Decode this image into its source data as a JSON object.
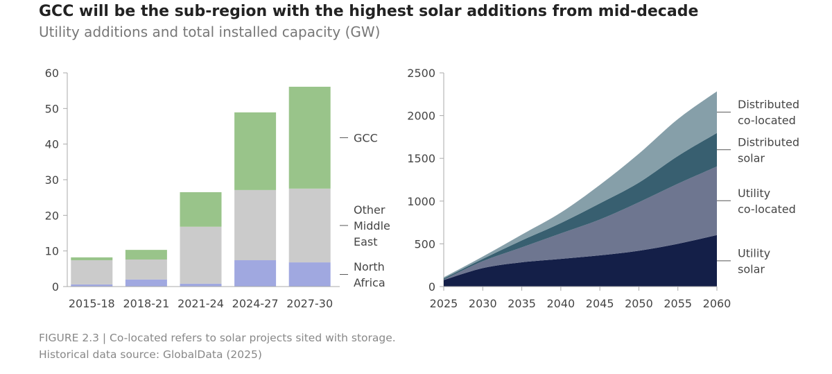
{
  "title": "GCC will be the sub-region with the highest solar additions from mid-decade",
  "subtitle": "Utility additions and total installed capacity (GW)",
  "footer": [
    "FIGURE 2.3 | Co-located refers to solar projects sited with storage.",
    "Historical data source: GlobalData (2025)"
  ],
  "chart_data": [
    {
      "type": "bar",
      "stacked": true,
      "categories": [
        "2015-18",
        "2018-21",
        "2021-24",
        "2024-27",
        "2027-30"
      ],
      "ylim": [
        0,
        60
      ],
      "yticks": [
        0,
        10,
        20,
        30,
        40,
        50,
        60
      ],
      "series": [
        {
          "name": "North Africa",
          "label_lines": [
            "North",
            "Africa"
          ],
          "color": "#a0a8e0",
          "values": [
            0.6,
            2.0,
            0.8,
            7.4,
            6.8
          ]
        },
        {
          "name": "Other Middle East",
          "label_lines": [
            "Other",
            "Middle",
            "East"
          ],
          "color": "#cbcbcb",
          "values": [
            6.8,
            5.6,
            16.0,
            19.7,
            20.7
          ]
        },
        {
          "name": "GCC",
          "label_lines": [
            "GCC"
          ],
          "color": "#99c48a",
          "values": [
            0.8,
            2.7,
            9.7,
            21.8,
            28.6
          ]
        }
      ]
    },
    {
      "type": "area",
      "stacked": true,
      "x": [
        2025,
        2030,
        2035,
        2040,
        2045,
        2050,
        2055,
        2060
      ],
      "xticks": [
        2025,
        2030,
        2035,
        2040,
        2045,
        2050,
        2055,
        2060
      ],
      "ylim": [
        0,
        2500
      ],
      "yticks": [
        0,
        500,
        1000,
        1500,
        2000,
        2500
      ],
      "series": [
        {
          "name": "Utility solar",
          "label_lines": [
            "Utility",
            "solar"
          ],
          "color": "#141f48",
          "values": [
            76,
            216,
            284,
            324,
            365,
            419,
            500,
            603
          ]
        },
        {
          "name": "Utility co-located",
          "label_lines": [
            "Utility",
            "co-located"
          ],
          "color": "#6e7690",
          "values": [
            5,
            81,
            175,
            298,
            419,
            567,
            703,
            802
          ]
        },
        {
          "name": "Distributed solar",
          "label_lines": [
            "Distributed",
            "solar"
          ],
          "color": "#385f70",
          "values": [
            14,
            27,
            81,
            121,
            189,
            230,
            324,
            392
          ]
        },
        {
          "name": "Distributed co-located",
          "label_lines": [
            "Distributed",
            "co-located"
          ],
          "color": "#869fa9",
          "values": [
            13,
            27,
            68,
            122,
            216,
            338,
            432,
            487
          ]
        }
      ]
    }
  ]
}
